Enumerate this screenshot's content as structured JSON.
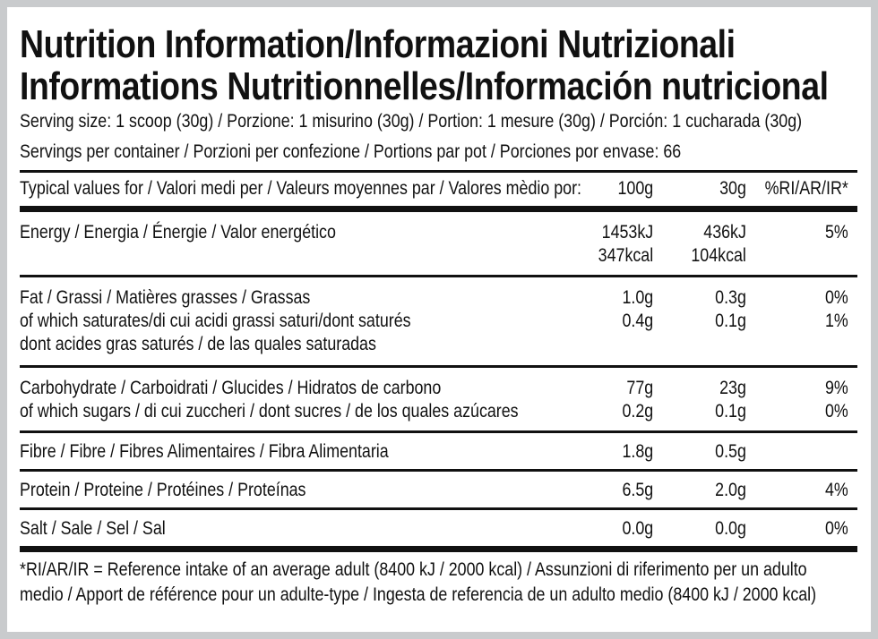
{
  "header": {
    "title_lines": [
      "Nutrition Information/Informazioni Nutrizionali",
      "Informations Nutritionnelles/Información nutricional"
    ],
    "serving_size": "Serving size: 1 scoop (30g) / Porzione: 1 misurino (30g) / Portion: 1 mesure (30g) / Porción: 1 cucharada (30g)",
    "servings_per_container": "Servings per container / Porzioni per confezione / Portions par pot / Porciones por envase: 66"
  },
  "table": {
    "columns": [
      "Typical values for / Valori medi per / Valeurs moyennes par / Valores mèdio por:",
      "100g",
      "30g",
      "%RI/AR/IR*"
    ],
    "rows": [
      [
        [
          "Energy / Energia / Énergie / Valor energético"
        ],
        [
          "1453kJ",
          "347kcal"
        ],
        [
          "436kJ",
          "104kcal"
        ],
        [
          "5%"
        ]
      ],
      [
        [
          "Fat / Grassi / Matières grasses / Grassas",
          "of which saturates/di cui acidi grassi saturi/dont saturés",
          "dont acides gras saturés / de las quales saturadas"
        ],
        [
          "1.0g",
          "0.4g"
        ],
        [
          "0.3g",
          "0.1g"
        ],
        [
          "0%",
          "1%"
        ]
      ],
      [
        [
          "Carbohydrate / Carboidrati / Glucides / Hidratos de carbono",
          "of which sugars / di cui zuccheri / dont sucres / de los quales azúcares"
        ],
        [
          "77g",
          "0.2g"
        ],
        [
          "23g",
          "0.1g"
        ],
        [
          "9%",
          "0%"
        ]
      ],
      [
        [
          "Fibre / Fibre / Fibres Alimentaires / Fibra Alimentaria"
        ],
        [
          "1.8g"
        ],
        [
          "0.5g"
        ],
        []
      ],
      [
        [
          "Protein / Proteine / Protéines / Proteínas"
        ],
        [
          "6.5g"
        ],
        [
          "2.0g"
        ],
        [
          "4%"
        ]
      ],
      [
        [
          "Salt / Sale / Sel / Sal"
        ],
        [
          "0.0g"
        ],
        [
          "0.0g"
        ],
        [
          "0%"
        ]
      ]
    ]
  },
  "footnote": "*RI/AR/IR = Reference intake of an average adult (8400 kJ / 2000 kcal)  / Assunzioni di riferimento per un adulto medio / Apport de référence pour un adulte-type / Ingesta de referencia de un adulto medio (8400 kJ / 2000 kcal)"
}
